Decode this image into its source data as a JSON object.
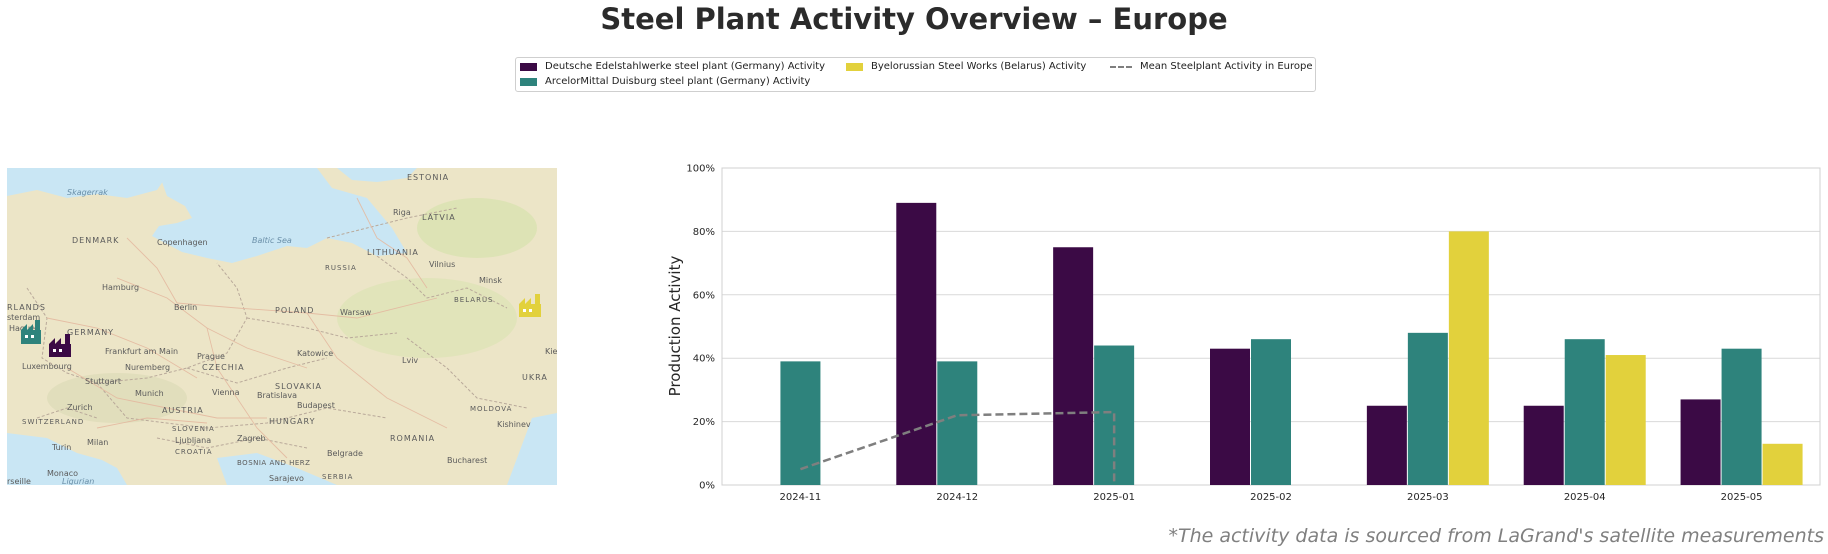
{
  "title": "Steel Plant Activity Overview – Europe",
  "footnote": "*The activity data is sourced from LaGrand's satellite measurements",
  "legend": {
    "items": [
      {
        "label": "Deutsche Edelstahlwerke steel plant (Germany) Activity",
        "color": "#3b0a45",
        "kind": "bar"
      },
      {
        "label": "ArcelorMittal Duisburg steel plant (Germany) Activity",
        "color": "#2e837c",
        "kind": "bar"
      },
      {
        "label": "Byelorussian Steel Works (Belarus) Activity",
        "color": "#e2d13c",
        "kind": "bar"
      },
      {
        "label": "Mean Steelplant Activity in Europe",
        "color": "#7f7f7f",
        "kind": "dashed-line"
      }
    ]
  },
  "map": {
    "labels": {
      "skagerrak": "Skagerrak",
      "estonia": "ESTONIA",
      "riga": "Riga",
      "latvia": "LATVIA",
      "denmark": "DENMARK",
      "copenhagen": "Copenhagen",
      "baltic": "Baltic Sea",
      "lithuania": "LITHUANIA",
      "vilnius": "Vilnius",
      "russia": "RUSSIA",
      "minsk": "Minsk",
      "hamburg": "Hamburg",
      "belarus": "BELARUS",
      "berlin": "Berlin",
      "poland": "POLAND",
      "warsaw": "Warsaw",
      "netherlands": "RLANDS",
      "amsterdam": "sterdam",
      "germany": "GERMANY",
      "hague": "Hague",
      "frankfurt": "Frankfurt am Main",
      "prague": "Prague",
      "katowice": "Katowice",
      "lviv": "Lviv",
      "luxembourg": "Luxembourg",
      "nuremberg": "Nuremberg",
      "czechia": "CZECHIA",
      "stuttgart": "Stuttgart",
      "slovakia": "SLOVAKIA",
      "ukraine": "UKRA",
      "munich": "Munich",
      "vienna": "Vienna",
      "bratislava": "Bratislava",
      "zurich": "Zurich",
      "austria": "AUSTRIA",
      "budapest": "Budapest",
      "moldova": "MOLDOVA",
      "switzerland": "SWITZERLAND",
      "hungary": "HUNGARY",
      "kishinev": "Kishinev",
      "slovenia": "SLOVENIA",
      "milan": "Milan",
      "turin": "Turin",
      "ljubljana": "Ljubljana",
      "zagreb": "Zagreb",
      "romania": "ROMANIA",
      "croatia": "CROATIA",
      "bosnia": "BOSNIA AND HERZ",
      "belgrade": "Belgrade",
      "bucharest": "Bucharest",
      "monaco": "Monaco",
      "ligurian": "Ligurian",
      "sarajevo": "Sarajevo",
      "serbia": "SERBIA",
      "marseille": "rseille",
      "kiev": "Kie"
    }
  },
  "chart_data": {
    "type": "bar",
    "categories": [
      "2024-11",
      "2024-12",
      "2025-01",
      "2025-02",
      "2025-03",
      "2025-04",
      "2025-05"
    ],
    "series": [
      {
        "name": "Deutsche Edelstahlwerke steel plant (Germany) Activity",
        "color": "#3b0a45",
        "values": [
          null,
          89,
          75,
          43,
          25,
          25,
          27
        ]
      },
      {
        "name": "ArcelorMittal Duisburg steel plant (Germany) Activity",
        "color": "#2e837c",
        "values": [
          39,
          39,
          44,
          46,
          48,
          46,
          43
        ]
      },
      {
        "name": "Byelorussian Steel Works (Belarus) Activity",
        "color": "#e2d13c",
        "values": [
          null,
          null,
          null,
          null,
          80,
          41,
          13
        ]
      }
    ],
    "mean_line": {
      "name": "Mean Steelplant Activity in Europe",
      "color": "#7f7f7f",
      "values": [
        5,
        22,
        23,
        0,
        null,
        null,
        null
      ]
    },
    "ylabel": "Production Activity",
    "xlabel": "",
    "ylim": [
      0,
      100
    ],
    "yticks": [
      "0%",
      "20%",
      "40%",
      "60%",
      "80%",
      "100%"
    ],
    "grid": true
  }
}
